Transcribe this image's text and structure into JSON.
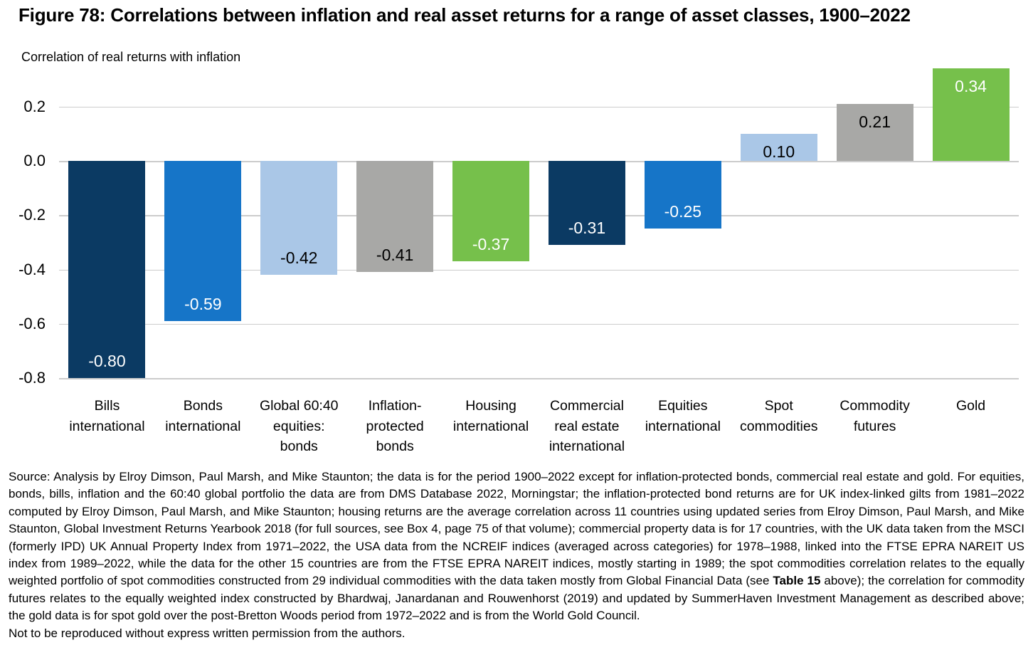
{
  "figure": {
    "title": "Figure 78: Correlations between inflation and real asset returns for a range of asset classes, 1900–2022"
  },
  "chart_data": {
    "type": "bar",
    "title": "Figure 78: Correlations between inflation and real asset returns for a range of asset classes, 1900–2022",
    "axis_title": "Correlation of real returns with inflation",
    "xlabel": "",
    "ylabel": "Correlation of real returns with inflation",
    "categories": [
      "Bills\ninternational",
      "Bonds\ninternational",
      "Global 60:40\nequities:\nbonds",
      "Inflation-\nprotected\nbonds",
      "Housing\ninternational",
      "Commercial\nreal estate\ninternational",
      "Equities\ninternational",
      "Spot\ncommodities",
      "Commodity\nfutures",
      "Gold"
    ],
    "values": [
      -0.8,
      -0.59,
      -0.42,
      -0.41,
      -0.37,
      -0.31,
      -0.25,
      0.1,
      0.21,
      0.34
    ],
    "value_labels": [
      "-0.80",
      "-0.59",
      "-0.42",
      "-0.41",
      "-0.37",
      "-0.31",
      "-0.25",
      "0.10",
      "0.21",
      "0.34"
    ],
    "bar_colors": [
      "#0b3a63",
      "#1675c8",
      "#aac7e7",
      "#a8a8a6",
      "#76c04b",
      "#0b3a63",
      "#1675c8",
      "#aac7e7",
      "#a8a8a6",
      "#76c04b"
    ],
    "value_label_colors": [
      "#ffffff",
      "#ffffff",
      "#000000",
      "#000000",
      "#ffffff",
      "#ffffff",
      "#ffffff",
      "#000000",
      "#000000",
      "#ffffff"
    ],
    "yticks": [
      0.2,
      0.0,
      -0.2,
      -0.4,
      -0.6,
      -0.8
    ],
    "ytick_labels": [
      "0.2",
      "0.0",
      "-0.2",
      "-0.4",
      "-0.6",
      "-0.8"
    ],
    "ylim": [
      -0.8,
      0.36
    ],
    "grid": "horizontal",
    "gridline_color": "#cccccc",
    "legend": "none"
  },
  "footer": {
    "source_segments": [
      {
        "bold": false,
        "text": "Source: Analysis by Elroy Dimson, Paul Marsh, and Mike Staunton; the data is for the period 1900–2022 except for inflation-protected bonds, commercial real estate and gold. For equities, bonds, bills, inflation and the 60:40 global portfolio the data are from DMS Database 2022, Morningstar; the inflation-protected bond returns are for UK index-linked gilts from 1981–2022 computed by Elroy Dimson, Paul Marsh, and Mike Staunton; housing returns are the average correlation across 11 countries using updated series from Elroy Dimson, Paul Marsh, and Mike Staunton, Global Investment Returns Yearbook 2018 (for full sources, see Box 4, page 75 of that volume); commercial property data is for 17 countries, with the UK data taken from the MSCI (formerly IPD) UK Annual Property Index from 1971–2022, the USA data from the NCREIF indices (averaged across categories) for 1978–1988, linked into the FTSE EPRA NAREIT US index from 1989–2022, while the data for the other 15 countries are from the FTSE EPRA NAREIT indices, mostly starting in 1989; the spot commodities correlation relates to the equally weighted portfolio of spot commodities constructed from 29 individual commodities with the data taken mostly from Global Financial Data (see "
      },
      {
        "bold": true,
        "text": "Table 15"
      },
      {
        "bold": false,
        "text": " above); the correlation for commodity futures relates to the equally weighted index constructed by Bhardwaj, Janardanan and Rouwenhorst (2019) and updated by SummerHaven Investment Management as described above; the gold data is for spot gold over the post-Bretton Woods period from 1972–2022 and is from the World Gold Council."
      }
    ],
    "notice": "Not to be reproduced without express written permission from the authors."
  },
  "colors": {
    "dark_navy": "#0b3a63",
    "blue": "#1675c8",
    "light_blue": "#aac7e7",
    "gray": "#a8a8a6",
    "green": "#76c04b",
    "gridline": "#cccccc",
    "text": "#000000",
    "background": "#ffffff"
  }
}
